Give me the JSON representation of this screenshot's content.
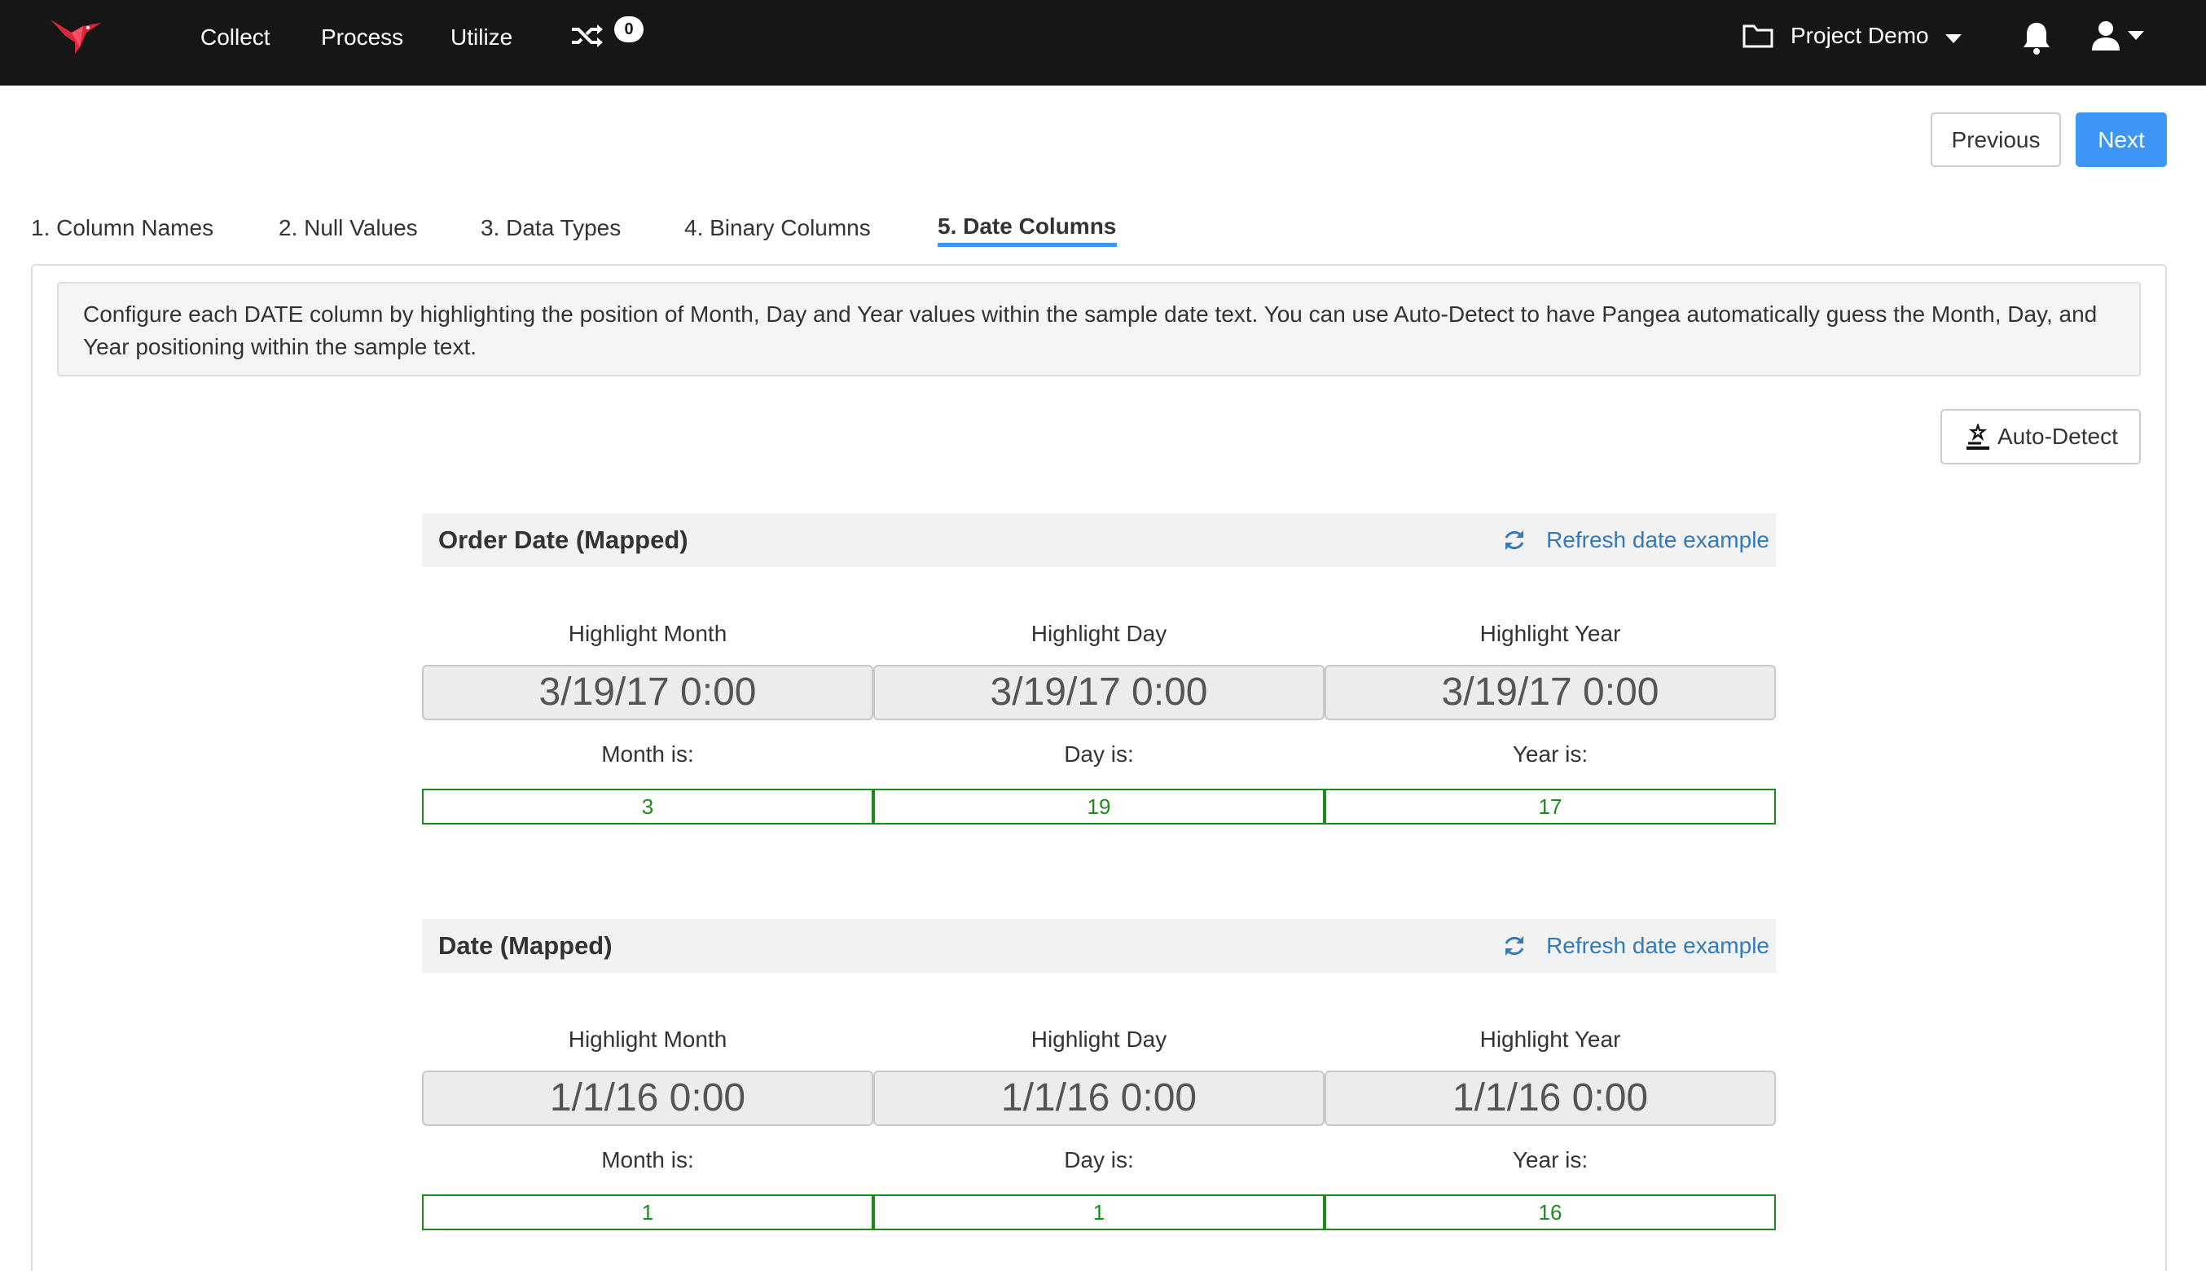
{
  "nav": {
    "links": [
      "Collect",
      "Process",
      "Utilize"
    ],
    "notification_count": "0",
    "project_name": "Project Demo"
  },
  "pager": {
    "previous_label": "Previous",
    "next_label": "Next"
  },
  "tabs": [
    {
      "label": "1. Column Names",
      "active": false
    },
    {
      "label": "2. Null Values",
      "active": false
    },
    {
      "label": "3. Data Types",
      "active": false
    },
    {
      "label": "4. Binary Columns",
      "active": false
    },
    {
      "label": "5. Date Columns",
      "active": true
    }
  ],
  "info_text": "Configure each DATE column by highlighting the position of Month, Day and Year values within the sample date text. You can use Auto-Detect to have Pangea automatically guess the Month, Day, and Year positioning within the sample text.",
  "auto_detect_label": "Auto-Detect",
  "sections": [
    {
      "title": "Order Date (Mapped)",
      "refresh_label": "Refresh date example",
      "columns": [
        {
          "highlight_label": "Highlight Month",
          "sample": "3/19/17 0:00",
          "result_label": "Month is:",
          "value": "3"
        },
        {
          "highlight_label": "Highlight Day",
          "sample": "3/19/17 0:00",
          "result_label": "Day is:",
          "value": "19"
        },
        {
          "highlight_label": "Highlight Year",
          "sample": "3/19/17 0:00",
          "result_label": "Year is:",
          "value": "17"
        }
      ]
    },
    {
      "title": "Date (Mapped)",
      "refresh_label": "Refresh date example",
      "columns": [
        {
          "highlight_label": "Highlight Month",
          "sample": "1/1/16 0:00",
          "result_label": "Month is:",
          "value": "1"
        },
        {
          "highlight_label": "Highlight Day",
          "sample": "1/1/16 0:00",
          "result_label": "Day is:",
          "value": "1"
        },
        {
          "highlight_label": "Highlight Year",
          "sample": "1/1/16 0:00",
          "result_label": "Year is:",
          "value": "16"
        }
      ]
    }
  ],
  "colors": {
    "navbar_bg": "#161616",
    "primary_button": "#3d96f5",
    "link": "#337ab7",
    "valid_value": "#1e8a1e"
  },
  "icons": [
    "hummingbird-logo-icon",
    "shuffle-icon",
    "folder-icon",
    "caret-down-icon",
    "bell-icon",
    "user-icon",
    "wand-icon",
    "refresh-icon"
  ]
}
